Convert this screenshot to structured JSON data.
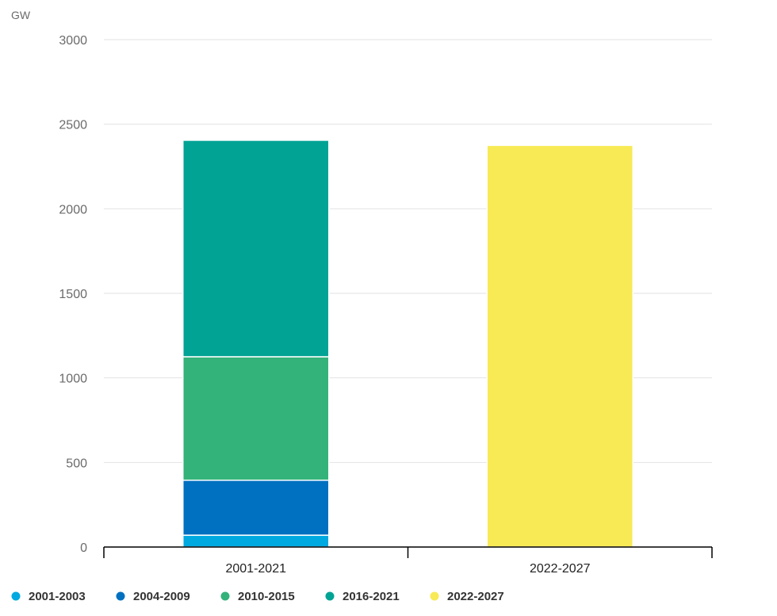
{
  "chart_data": {
    "type": "bar",
    "stacked": true,
    "ylabel": "GW",
    "ylim": [
      0,
      3000
    ],
    "yticks": [
      0,
      500,
      1000,
      1500,
      2000,
      2500,
      3000
    ],
    "categories": [
      "2001-2021",
      "2022-2027"
    ],
    "series": [
      {
        "name": "2001-2003",
        "color": "#00a9e0",
        "values": [
          70,
          0
        ]
      },
      {
        "name": "2004-2009",
        "color": "#0070c0",
        "values": [
          325,
          0
        ]
      },
      {
        "name": "2010-2015",
        "color": "#33b27a",
        "values": [
          730,
          0
        ]
      },
      {
        "name": "2016-2021",
        "color": "#00a394",
        "values": [
          1280,
          0
        ]
      },
      {
        "name": "2022-2027",
        "color": "#f7ea55",
        "values": [
          0,
          2375
        ]
      }
    ],
    "grid": true,
    "legend_position": "bottom-left"
  }
}
